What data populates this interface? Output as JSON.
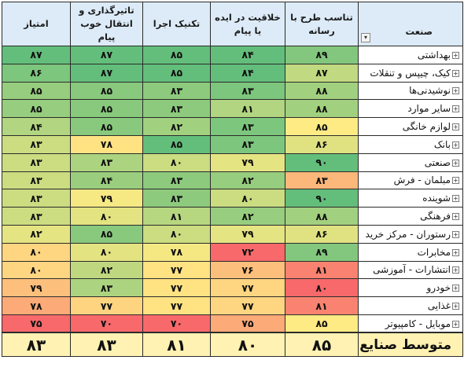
{
  "headers": {
    "industry": "صنعت",
    "fit": "تناسب طرح با رسانه",
    "creativity": "خلاقیت در ایده یا پیام",
    "technique": "تکنیک اجرا",
    "impact": "تاثیرگذاری و انتقال خوب پیام",
    "score": "امتیاز"
  },
  "rows": [
    {
      "industry": "بهداشتی",
      "fit": "۸۹",
      "creativity": "۸۴",
      "technique": "۸۵",
      "impact": "۸۷",
      "score": "۸۷"
    },
    {
      "industry": "کیک، چیپس و تنقلات",
      "fit": "۸۷",
      "creativity": "۸۴",
      "technique": "۸۵",
      "impact": "۸۷",
      "score": "۸۶"
    },
    {
      "industry": "نوشیدنی‌ها",
      "fit": "۸۸",
      "creativity": "۸۳",
      "technique": "۸۳",
      "impact": "۸۵",
      "score": "۸۵"
    },
    {
      "industry": "سایر موارد",
      "fit": "۸۸",
      "creativity": "۸۱",
      "technique": "۸۳",
      "impact": "۸۵",
      "score": "۸۵"
    },
    {
      "industry": "لوازم خانگی",
      "fit": "۸۵",
      "creativity": "۸۳",
      "technique": "۸۲",
      "impact": "۸۵",
      "score": "۸۴"
    },
    {
      "industry": "بانک",
      "fit": "۸۶",
      "creativity": "۸۳",
      "technique": "۸۵",
      "impact": "۷۸",
      "score": "۸۳"
    },
    {
      "industry": "صنعتی",
      "fit": "۹۰",
      "creativity": "۷۹",
      "technique": "۸۰",
      "impact": "۸۳",
      "score": "۸۳"
    },
    {
      "industry": "مبلمان - فرش",
      "fit": "۸۳",
      "creativity": "۸۲",
      "technique": "۸۳",
      "impact": "۸۴",
      "score": "۸۳"
    },
    {
      "industry": "شوینده",
      "fit": "۹۰",
      "creativity": "۸۰",
      "technique": "۸۳",
      "impact": "۷۹",
      "score": "۸۳"
    },
    {
      "industry": "فرهنگی",
      "fit": "۸۸",
      "creativity": "۸۲",
      "technique": "۸۱",
      "impact": "۸۰",
      "score": "۸۳"
    },
    {
      "industry": "رستوران - مرکز خرید",
      "fit": "۸۶",
      "creativity": "۷۹",
      "technique": "۸۰",
      "impact": "۸۵",
      "score": "۸۲"
    },
    {
      "industry": "مخابرات",
      "fit": "۸۹",
      "creativity": "۷۲",
      "technique": "۷۸",
      "impact": "۸۰",
      "score": "۸۰"
    },
    {
      "industry": "انتشارات - آموزشی",
      "fit": "۸۱",
      "creativity": "۷۶",
      "technique": "۷۷",
      "impact": "۸۲",
      "score": "۸۰"
    },
    {
      "industry": "خودرو",
      "fit": "۸۰",
      "creativity": "۷۷",
      "technique": "۷۷",
      "impact": "۸۳",
      "score": "۷۹"
    },
    {
      "industry": "غذایی",
      "fit": "۸۱",
      "creativity": "۷۷",
      "technique": "۷۷",
      "impact": "۷۷",
      "score": "۷۸"
    },
    {
      "industry": "موبایل - کامپیوتر",
      "fit": "۸۵",
      "creativity": "۷۵",
      "technique": "۷۰",
      "impact": "۷۰",
      "score": "۷۵"
    }
  ],
  "average": {
    "label": "متوسط صنایع",
    "fit": "۸۵",
    "creativity": "۸۰",
    "technique": "۸۱",
    "impact": "۸۳",
    "score": "۸۳"
  },
  "icons": {
    "expand": "plus-box-icon",
    "filter": "filter-dropdown-icon"
  },
  "colors": {
    "header_bg": "#dcebf7",
    "average_bg": "#fff2b3",
    "scale_low": "#f8696b",
    "scale_mid": "#ffeb84",
    "scale_high": "#63be7b"
  }
}
